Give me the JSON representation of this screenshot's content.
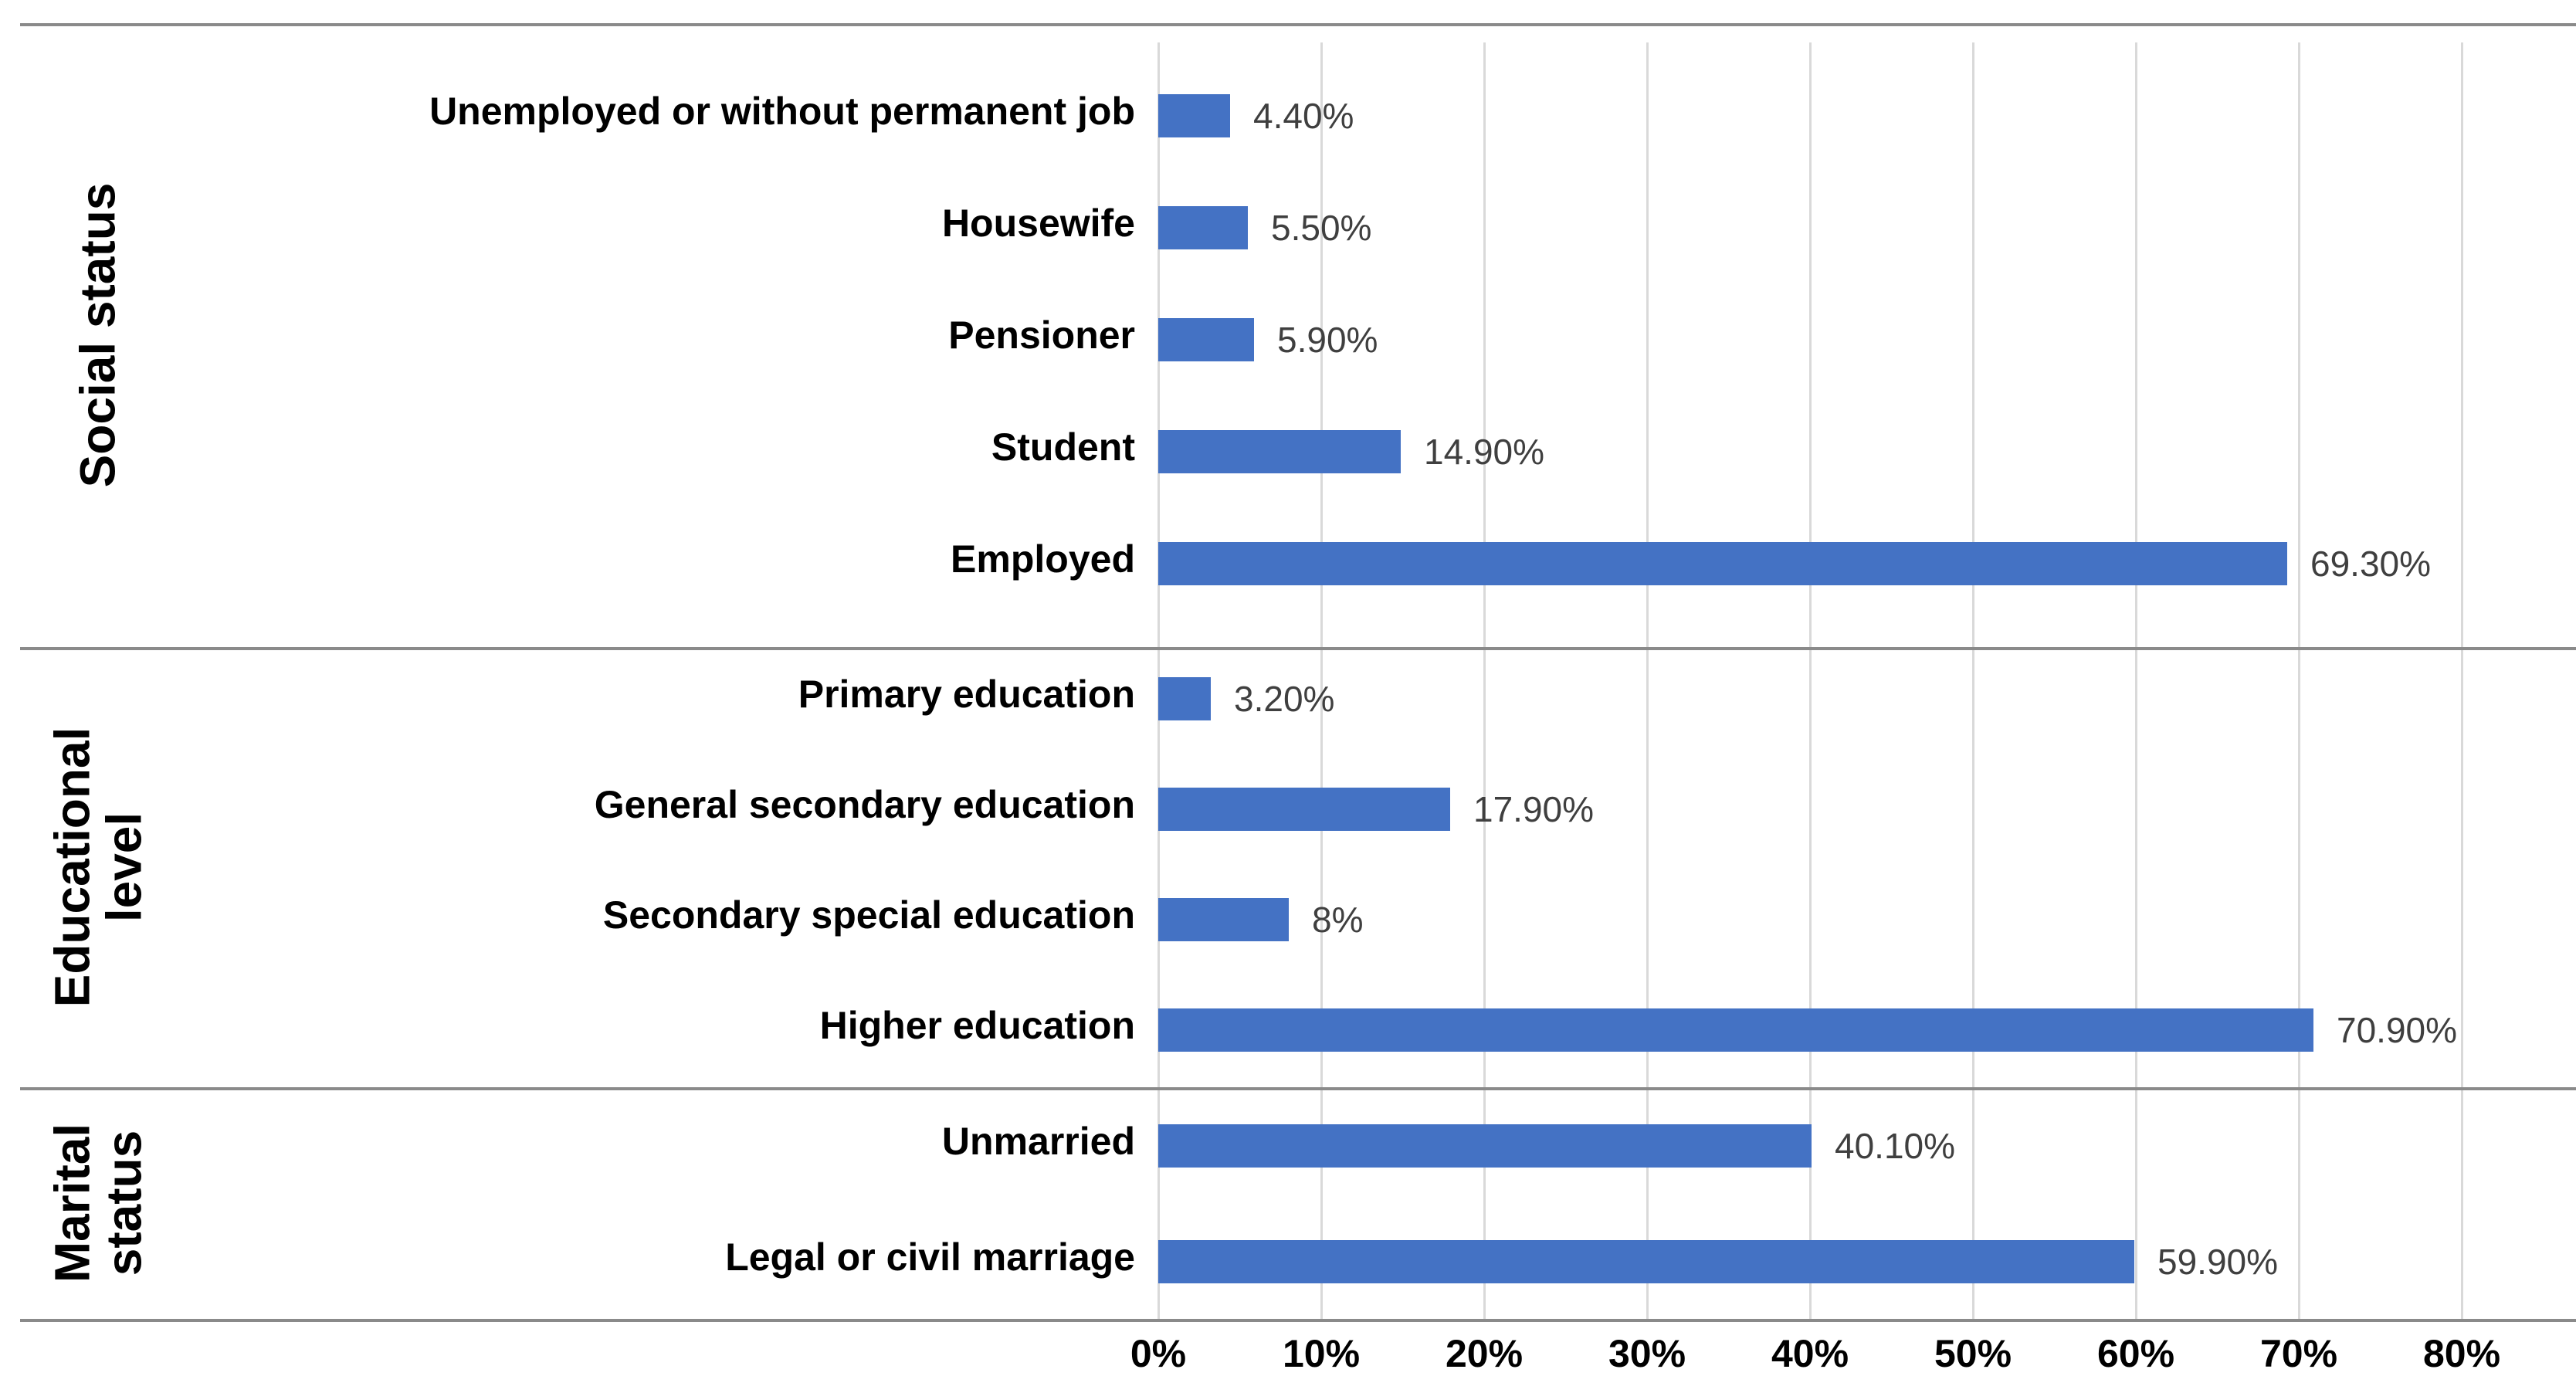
{
  "chart_data": {
    "type": "bar",
    "orientation": "horizontal",
    "title": "",
    "xlabel": "",
    "ylabel": "",
    "value_axis": {
      "min": 0,
      "max": 80,
      "tick_step": 10,
      "tick_labels": [
        "0%",
        "10%",
        "20%",
        "30%",
        "40%",
        "50%",
        "60%",
        "70%",
        "80%"
      ],
      "grid": true
    },
    "legend": null,
    "groups": [
      {
        "label": "Social status",
        "items": [
          {
            "label": "Unemployed or without permanent job",
            "value": 4.4,
            "value_label": "4.40%"
          },
          {
            "label": "Housewife",
            "value": 5.5,
            "value_label": "5.50%"
          },
          {
            "label": "Pensioner",
            "value": 5.9,
            "value_label": "5.90%"
          },
          {
            "label": "Student",
            "value": 14.9,
            "value_label": "14.90%"
          },
          {
            "label": "Employed",
            "value": 69.3,
            "value_label": "69.30%"
          }
        ]
      },
      {
        "label": "Educational level",
        "items": [
          {
            "label": "Primary education",
            "value": 3.2,
            "value_label": "3.20%"
          },
          {
            "label": "General secondary education",
            "value": 17.9,
            "value_label": "17.90%"
          },
          {
            "label": "Secondary special education",
            "value": 8,
            "value_label": "8%"
          },
          {
            "label": "Higher education",
            "value": 70.9,
            "value_label": "70.90%"
          }
        ]
      },
      {
        "label": "Marital status",
        "items": [
          {
            "label": "Unmarried",
            "value": 40.1,
            "value_label": "40.10%"
          },
          {
            "label": "Legal or civil marriage",
            "value": 59.9,
            "value_label": "59.90%"
          }
        ]
      }
    ],
    "colors": {
      "bar": "#4472c4",
      "gridline": "#d9d9d9",
      "divider": "#8a8a8a",
      "value_label_text": "#3f3f3f",
      "category_text": "#000000",
      "axis_text": "#000000"
    }
  }
}
